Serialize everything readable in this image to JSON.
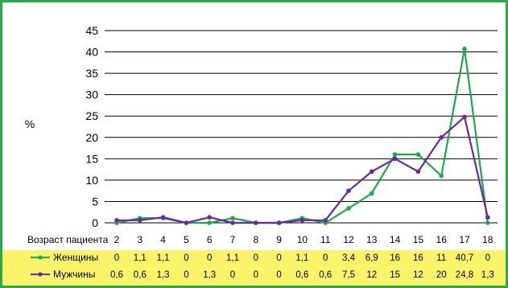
{
  "chart_data": {
    "type": "line",
    "ylabel": "%",
    "xlabel": "Возраст пациента",
    "ylim": [
      0,
      45
    ],
    "yticks": [
      0,
      5,
      10,
      15,
      20,
      25,
      30,
      35,
      40,
      45
    ],
    "categories": [
      "2",
      "3",
      "4",
      "5",
      "6",
      "7",
      "8",
      "9",
      "10",
      "11",
      "12",
      "13",
      "14",
      "15",
      "16",
      "17",
      "18"
    ],
    "series": [
      {
        "name": "Женщины",
        "color": "#1fa84a",
        "values": [
          0,
          1.1,
          1.1,
          0,
          0,
          1.1,
          0,
          0,
          1.1,
          0,
          3.4,
          6.9,
          16,
          16,
          11,
          40.7,
          0
        ],
        "labels": [
          "0",
          "1,1",
          "1,1",
          "0",
          "0",
          "1,1",
          "0",
          "0",
          "1,1",
          "0",
          "3,4",
          "6,9",
          "16",
          "16",
          "11",
          "40,7",
          "0"
        ]
      },
      {
        "name": "Мужчины",
        "color": "#6a2a9a",
        "values": [
          0.6,
          0.6,
          1.3,
          0,
          1.3,
          0,
          0,
          0,
          0.6,
          0.6,
          7.5,
          12,
          15,
          12,
          20,
          24.8,
          1.3
        ],
        "labels": [
          "0,6",
          "0,6",
          "1,3",
          "0",
          "1,3",
          "0",
          "0",
          "0",
          "0,6",
          "0,6",
          "7,5",
          "12",
          "15",
          "12",
          "20",
          "24,8",
          "1,3"
        ]
      }
    ],
    "table_background": "#fbf46a",
    "grid": true
  }
}
